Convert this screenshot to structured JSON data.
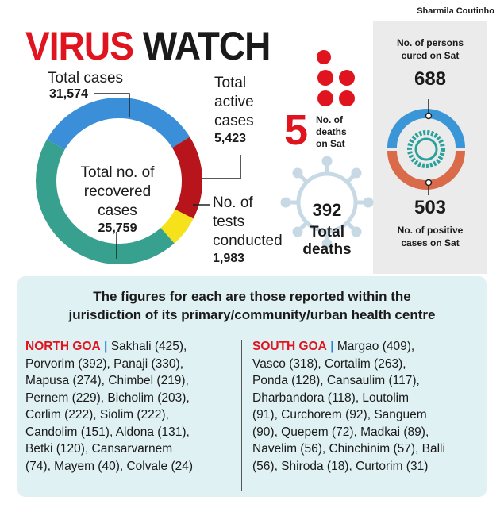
{
  "byline": "Sharmila Coutinho",
  "title": {
    "part1": "VIRUS",
    "part2": "WATCH"
  },
  "donut": {
    "total_cases_label": "Total cases",
    "total_cases_value": "31,574",
    "active_label_1": "Total",
    "active_label_2": "active",
    "active_label_3": "cases",
    "active_value": "5,423",
    "recovered_label_1": "Total no. of",
    "recovered_label_2": "recovered",
    "recovered_label_3": "cases",
    "recovered_value": "25,759",
    "tests_label_1": "No. of",
    "tests_label_2": "tests",
    "tests_label_3": "conducted",
    "tests_value": "1,983",
    "segments": {
      "recovered": 25759,
      "active": 5423,
      "tests": 1983
    },
    "colors": {
      "recovered_top": "#3a8fd8",
      "recovered_bottom": "#38a08e",
      "active": "#b8141c",
      "tests": "#f6e21a"
    }
  },
  "deaths_sat": {
    "number": "5",
    "label_1": "No. of",
    "label_2": "deaths",
    "label_3": "on Sat"
  },
  "total_deaths": {
    "number": "392",
    "label_1": "Total",
    "label_2": "deaths"
  },
  "cured": {
    "label_1": "No. of persons",
    "label_2": "cured on Sat",
    "value": "688"
  },
  "positive": {
    "value": "503",
    "label_1": "No. of positive",
    "label_2": "cases on Sat"
  },
  "note": {
    "line1": "The figures for each are those reported within the",
    "line2": "jurisdiction of its primary/community/urban health centre"
  },
  "north": {
    "heading": "NORTH GOA",
    "line1": "Sakhali (425),",
    "line2": "Porvorim (392), Panaji (330),",
    "line3": "Mapusa (274), Chimbel (219),",
    "line4": "Pernem (229), Bicholim (203),",
    "line5": "Corlim (222), Siolim (222),",
    "line6": "Candolim (151), Aldona (131),",
    "line7": "Betki (120), Cansarvarnem",
    "line8": "(74), Mayem (40), Colvale (24)"
  },
  "south": {
    "heading": "SOUTH GOA",
    "line1": "Margao (409),",
    "line2": "Vasco (318), Cortalim (263),",
    "line3": "Ponda (128), Cansaulim (117),",
    "line4": "Dharbandora (118), Loutolim",
    "line5": "(91), Curchorem (92), Sanguem",
    "line6": "(90), Quepem (72), Madkai (89),",
    "line7": "Navelim (56), Chinchinim (57), Balli",
    "line8": "(56), Shiroda (18), Curtorim (31)"
  }
}
